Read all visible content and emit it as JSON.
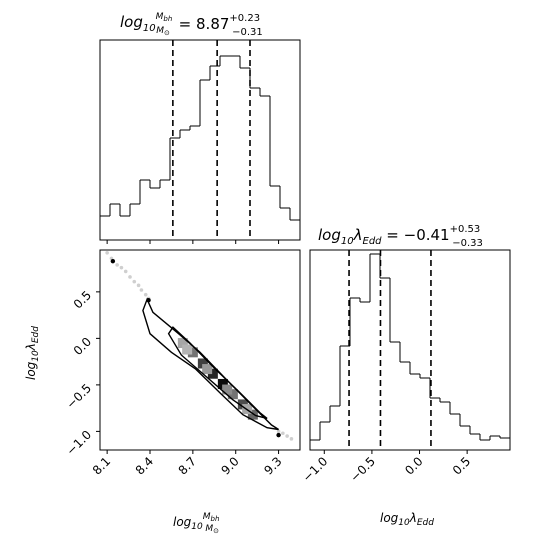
{
  "chart_data": [
    {
      "type": "histogram",
      "panel": "top-left",
      "title": {
        "text": "log10 Mbh/M⊙ = 8.87 +0.23 −0.31",
        "value": "8.87",
        "upper": "+0.23",
        "lower": "−0.31"
      },
      "xlim": [
        8.05,
        9.45
      ],
      "ylim": [
        0,
        1.0
      ],
      "bin_edges": [
        8.05,
        8.12,
        8.19,
        8.26,
        8.33,
        8.4,
        8.47,
        8.54,
        8.61,
        8.68,
        8.75,
        8.82,
        8.89,
        8.96,
        9.03,
        9.1,
        9.17,
        9.24,
        9.31,
        9.38,
        9.45
      ],
      "counts": [
        0.12,
        0.18,
        0.12,
        0.18,
        0.3,
        0.26,
        0.3,
        0.51,
        0.55,
        0.57,
        0.8,
        0.87,
        0.92,
        0.92,
        0.86,
        0.76,
        0.72,
        0.27,
        0.16,
        0.1
      ],
      "quantiles": [
        8.56,
        8.87,
        9.1
      ]
    },
    {
      "type": "histogram",
      "panel": "bottom-right",
      "title": {
        "text": "log10 λEdd = −0.41 +0.53 −0.33",
        "value": "−0.41",
        "upper": "+0.53",
        "lower": "−0.33"
      },
      "xlim": [
        -1.15,
        0.95
      ],
      "ylim": [
        0,
        1.0
      ],
      "xticks": [
        "−1.0",
        "−0.5",
        "0.0",
        "0.5"
      ],
      "xtick_values": [
        -1.0,
        -0.5,
        0.0,
        0.5
      ],
      "xlabel": "log10λEdd",
      "bin_edges": [
        -1.15,
        -1.045,
        -0.94,
        -0.835,
        -0.73,
        -0.625,
        -0.52,
        -0.415,
        -0.31,
        -0.205,
        -0.1,
        0.005,
        0.11,
        0.215,
        0.32,
        0.425,
        0.53,
        0.635,
        0.74,
        0.845,
        0.95
      ],
      "counts": [
        0.05,
        0.14,
        0.22,
        0.52,
        0.76,
        0.74,
        0.98,
        0.86,
        0.54,
        0.44,
        0.38,
        0.36,
        0.26,
        0.24,
        0.18,
        0.12,
        0.08,
        0.05,
        0.07,
        0.06
      ],
      "quantiles": [
        -0.74,
        -0.41,
        0.12
      ]
    },
    {
      "type": "2d-density",
      "panel": "bottom-left",
      "xlabel": "log10Mbh/M⊙",
      "ylabel": "log10λEdd",
      "xlim": [
        8.05,
        9.45
      ],
      "ylim": [
        -1.2,
        0.95
      ],
      "xticks": [
        "8.1",
        "8.4",
        "8.7",
        "9.0",
        "9.3"
      ],
      "xtick_values": [
        8.1,
        8.4,
        8.7,
        9.0,
        9.3
      ],
      "yticks": [
        "−1.0",
        "−0.5",
        "0.0",
        "0.5"
      ],
      "ytick_values": [
        -1.0,
        -0.5,
        0.0,
        0.5
      ],
      "outer_contour": [
        [
          8.38,
          0.42
        ],
        [
          8.42,
          0.28
        ],
        [
          8.6,
          0.05
        ],
        [
          8.75,
          -0.15
        ],
        [
          8.92,
          -0.42
        ],
        [
          9.1,
          -0.7
        ],
        [
          9.25,
          -0.93
        ],
        [
          9.3,
          -0.98
        ],
        [
          9.22,
          -0.96
        ],
        [
          9.05,
          -0.82
        ],
        [
          8.9,
          -0.6
        ],
        [
          8.72,
          -0.33
        ],
        [
          8.55,
          -0.15
        ],
        [
          8.4,
          0.05
        ],
        [
          8.35,
          0.3
        ],
        [
          8.38,
          0.42
        ]
      ],
      "inner_contour": [
        [
          8.56,
          0.12
        ],
        [
          8.68,
          -0.05
        ],
        [
          8.85,
          -0.32
        ],
        [
          9.02,
          -0.57
        ],
        [
          9.17,
          -0.8
        ],
        [
          9.22,
          -0.86
        ],
        [
          9.14,
          -0.83
        ],
        [
          8.98,
          -0.66
        ],
        [
          8.8,
          -0.42
        ],
        [
          8.62,
          -0.18
        ],
        [
          8.53,
          0.05
        ],
        [
          8.56,
          0.12
        ]
      ],
      "density_cells": [
        {
          "x": 8.63,
          "y": -0.05,
          "v": 0.35
        },
        {
          "x": 8.7,
          "y": -0.15,
          "v": 0.55
        },
        {
          "x": 8.77,
          "y": -0.27,
          "v": 0.75
        },
        {
          "x": 8.84,
          "y": -0.38,
          "v": 0.85
        },
        {
          "x": 8.91,
          "y": -0.49,
          "v": 0.95
        },
        {
          "x": 8.98,
          "y": -0.6,
          "v": 0.55
        },
        {
          "x": 9.05,
          "y": -0.71,
          "v": 0.7
        },
        {
          "x": 9.12,
          "y": -0.82,
          "v": 0.6
        },
        {
          "x": 8.66,
          "y": -0.12,
          "v": 0.3
        },
        {
          "x": 8.8,
          "y": -0.33,
          "v": 0.4
        },
        {
          "x": 8.94,
          "y": -0.55,
          "v": 0.45
        },
        {
          "x": 9.08,
          "y": -0.76,
          "v": 0.35
        }
      ],
      "scatter_points": [
        {
          "x": 8.1,
          "y": 0.92
        },
        {
          "x": 8.13,
          "y": 0.86
        },
        {
          "x": 8.14,
          "y": 0.83
        },
        {
          "x": 8.17,
          "y": 0.79
        },
        {
          "x": 8.2,
          "y": 0.76
        },
        {
          "x": 8.23,
          "y": 0.72
        },
        {
          "x": 8.26,
          "y": 0.66
        },
        {
          "x": 8.29,
          "y": 0.61
        },
        {
          "x": 8.32,
          "y": 0.57
        },
        {
          "x": 8.34,
          "y": 0.52
        },
        {
          "x": 8.37,
          "y": 0.47
        },
        {
          "x": 8.39,
          "y": 0.43
        },
        {
          "x": 9.33,
          "y": -1.02
        },
        {
          "x": 9.36,
          "y": -1.05
        },
        {
          "x": 9.39,
          "y": -1.08
        },
        {
          "x": 9.3,
          "y": -1.0
        }
      ],
      "highlight_points": [
        {
          "x": 8.14,
          "y": 0.83
        },
        {
          "x": 8.39,
          "y": 0.41
        },
        {
          "x": 9.3,
          "y": -1.04
        }
      ]
    }
  ]
}
